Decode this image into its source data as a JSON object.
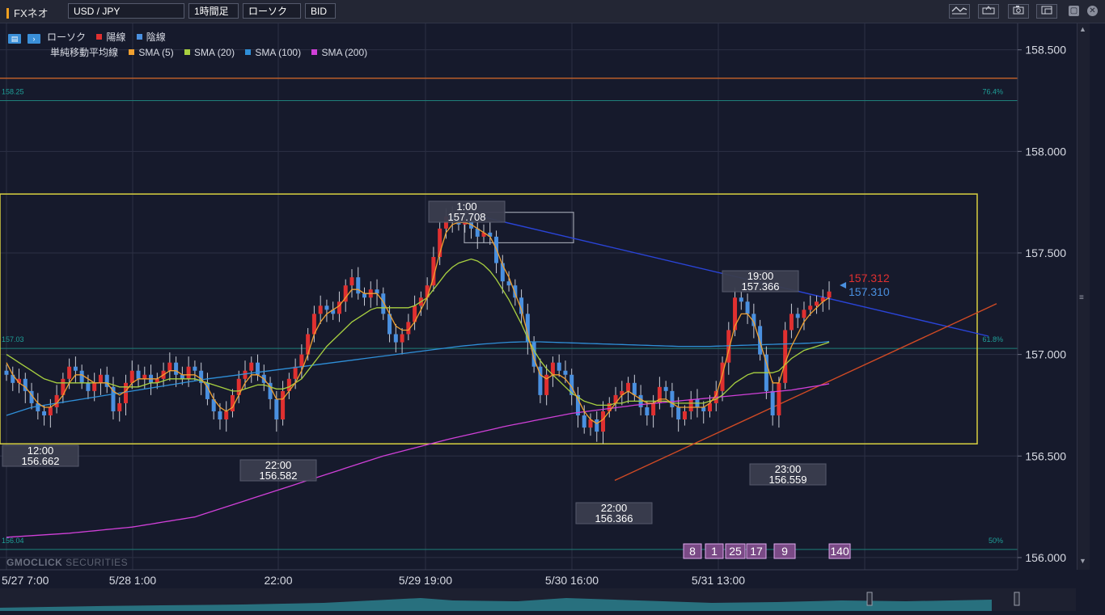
{
  "toolbar": {
    "app_title": "FXネオ",
    "pair": "USD / JPY",
    "timeframe": "1時間足",
    "chart_type": "ローソク",
    "price_type": "BID",
    "icons": [
      "indicator-icon",
      "export-icon",
      "camera-icon",
      "window-icon"
    ]
  },
  "legend": {
    "candle_label": "ローソク",
    "up_label": "陽線",
    "down_label": "陰線",
    "sma_group": "単純移動平均線",
    "sma": [
      {
        "name": "SMA (5)",
        "color": "#f0a030"
      },
      {
        "name": "SMA (20)",
        "color": "#a8d040"
      },
      {
        "name": "SMA (100)",
        "color": "#2f8fd8"
      },
      {
        "name": "SMA (200)",
        "color": "#d040d8"
      }
    ],
    "up_color": "#e03030",
    "down_color": "#4a90e0"
  },
  "brand": {
    "bold": "GMOCLICK",
    "rest": "SECURITIES"
  },
  "chart_data": {
    "type": "candlestick",
    "symbol": "USD/JPY",
    "ylim": [
      155.94,
      158.63
    ],
    "y_ticks": [
      "158.500",
      "158.000",
      "157.500",
      "157.000",
      "156.500",
      "156.000"
    ],
    "x_ticks": [
      "5/27 7:00",
      "5/28 1:00",
      "22:00",
      "5/29 19:00",
      "5/30 16:00",
      "5/31 13:00"
    ],
    "fib_levels": [
      {
        "price": 158.25,
        "label": "158.25",
        "pct": "76.4%"
      },
      {
        "price": 157.03,
        "label": "157.03",
        "pct": "61.8%"
      },
      {
        "price": 156.04,
        "label": "156.04",
        "pct": "50%"
      }
    ],
    "hline": 158.36,
    "current_ask": "157.312",
    "current_bid": "157.310",
    "annotations": [
      {
        "time": "12:00",
        "price": "156.662"
      },
      {
        "time": "22:00",
        "price": "156.582"
      },
      {
        "time": "1:00",
        "price": "157.708"
      },
      {
        "time": "22:00",
        "price": "156.366"
      },
      {
        "time": "19:00",
        "price": "157.366"
      },
      {
        "time": "23:00",
        "price": "156.559"
      }
    ],
    "event_badges": [
      "8",
      "1",
      "25",
      "17",
      "9",
      "140"
    ],
    "closes": [
      156.9,
      156.86,
      156.88,
      156.82,
      156.76,
      156.72,
      156.7,
      156.74,
      156.8,
      156.88,
      156.94,
      156.92,
      156.86,
      156.82,
      156.86,
      156.9,
      156.84,
      156.72,
      156.76,
      156.86,
      156.92,
      156.88,
      156.9,
      156.86,
      156.88,
      156.92,
      156.96,
      156.9,
      156.88,
      156.94,
      156.92,
      156.86,
      156.78,
      156.72,
      156.68,
      156.72,
      156.8,
      156.88,
      156.92,
      156.96,
      156.9,
      156.86,
      156.78,
      156.68,
      156.82,
      156.88,
      156.94,
      157.0,
      157.1,
      157.2,
      157.24,
      157.22,
      157.2,
      157.26,
      157.34,
      157.38,
      157.3,
      157.28,
      157.32,
      157.3,
      157.2,
      157.1,
      157.06,
      157.1,
      157.16,
      157.24,
      157.28,
      157.34,
      157.48,
      157.62,
      157.68,
      157.66,
      157.64,
      157.66,
      157.62,
      157.58,
      157.6,
      157.58,
      157.45,
      157.36,
      157.34,
      157.28,
      157.2,
      157.06,
      156.94,
      156.8,
      156.9,
      156.96,
      156.92,
      156.9,
      156.8,
      156.7,
      156.64,
      156.68,
      156.62,
      156.72,
      156.76,
      156.8,
      156.82,
      156.86,
      156.8,
      156.74,
      156.7,
      156.76,
      156.84,
      156.82,
      156.74,
      156.68,
      156.72,
      156.78,
      156.74,
      156.72,
      156.76,
      156.82,
      156.96,
      157.12,
      157.28,
      157.26,
      157.2,
      157.14,
      157.0,
      156.82,
      156.7,
      156.86,
      157.12,
      157.2,
      157.18,
      157.22,
      157.24,
      157.26,
      157.28,
      157.31
    ],
    "sma5": [
      156.96,
      156.9,
      156.86,
      156.84,
      156.8,
      156.76,
      156.74,
      156.74,
      156.76,
      156.8,
      156.86,
      156.9,
      156.9,
      156.88,
      156.86,
      156.86,
      156.86,
      156.82,
      156.8,
      156.82,
      156.86,
      156.88,
      156.88,
      156.88,
      156.88,
      156.9,
      156.92,
      156.92,
      156.9,
      156.9,
      156.9,
      156.88,
      156.84,
      156.78,
      156.74,
      156.72,
      156.74,
      156.8,
      156.86,
      156.9,
      156.9,
      156.88,
      156.84,
      156.78,
      156.78,
      156.82,
      156.86,
      156.92,
      157.0,
      157.1,
      157.16,
      157.2,
      157.22,
      157.24,
      157.28,
      157.32,
      157.32,
      157.3,
      157.3,
      157.3,
      157.26,
      157.2,
      157.14,
      157.12,
      157.12,
      157.16,
      157.22,
      157.28,
      157.38,
      157.5,
      157.6,
      157.64,
      157.65,
      157.65,
      157.64,
      157.62,
      157.6,
      157.58,
      157.52,
      157.44,
      157.38,
      157.3,
      157.22,
      157.1,
      156.98,
      156.9,
      156.88,
      156.9,
      156.9,
      156.88,
      156.84,
      156.78,
      156.72,
      156.68,
      156.66,
      156.68,
      156.72,
      156.76,
      156.8,
      156.82,
      156.8,
      156.78,
      156.76,
      156.76,
      156.78,
      156.78,
      156.76,
      156.74,
      156.74,
      156.74,
      156.74,
      156.74,
      156.76,
      156.8,
      156.9,
      157.02,
      157.14,
      157.2,
      157.2,
      157.16,
      157.06,
      156.96,
      156.86,
      156.86,
      156.96,
      157.04,
      157.1,
      157.16,
      157.2,
      157.23,
      157.26,
      157.28
    ],
    "sma20": [
      157.0,
      156.98,
      156.96,
      156.94,
      156.92,
      156.9,
      156.88,
      156.87,
      156.86,
      156.86,
      156.86,
      156.86,
      156.86,
      156.86,
      156.86,
      156.86,
      156.86,
      156.85,
      156.84,
      156.84,
      156.84,
      156.84,
      156.85,
      156.86,
      156.86,
      156.87,
      156.88,
      156.88,
      156.88,
      156.88,
      156.88,
      156.87,
      156.86,
      156.85,
      156.84,
      156.83,
      156.82,
      156.82,
      156.83,
      156.84,
      156.85,
      156.85,
      156.84,
      156.83,
      156.83,
      156.84,
      156.86,
      156.88,
      156.92,
      156.96,
      157.0,
      157.04,
      157.07,
      157.1,
      157.13,
      157.16,
      157.18,
      157.2,
      157.22,
      157.23,
      157.23,
      157.23,
      157.23,
      157.23,
      157.23,
      157.24,
      157.26,
      157.28,
      157.32,
      157.36,
      157.4,
      157.43,
      157.45,
      157.46,
      157.47,
      157.46,
      157.44,
      157.41,
      157.37,
      157.32,
      157.27,
      157.21,
      157.15,
      157.08,
      157.02,
      156.97,
      156.93,
      156.9,
      156.87,
      156.84,
      156.81,
      156.79,
      156.77,
      156.76,
      156.75,
      156.75,
      156.75,
      156.76,
      156.76,
      156.77,
      156.77,
      156.77,
      156.77,
      156.77,
      156.77,
      156.77,
      156.76,
      156.76,
      156.76,
      156.76,
      156.76,
      156.76,
      156.77,
      156.78,
      156.8,
      156.83,
      156.86,
      156.88,
      156.9,
      156.91,
      156.91,
      156.91,
      156.91,
      156.92,
      156.95,
      156.98,
      157.0,
      157.02,
      157.03,
      157.04,
      157.05,
      157.06
    ],
    "sma100": [
      156.7,
      156.71,
      156.72,
      156.73,
      156.74,
      156.745,
      156.75,
      156.755,
      156.76,
      156.765,
      156.77,
      156.775,
      156.78,
      156.785,
      156.79,
      156.795,
      156.8,
      156.805,
      156.81,
      156.815,
      156.82,
      156.825,
      156.83,
      156.835,
      156.84,
      156.845,
      156.85,
      156.855,
      156.86,
      156.865,
      156.87,
      156.875,
      156.88,
      156.884,
      156.888,
      156.892,
      156.896,
      156.9,
      156.904,
      156.908,
      156.912,
      156.916,
      156.92,
      156.924,
      156.928,
      156.932,
      156.936,
      156.94,
      156.944,
      156.948,
      156.952,
      156.956,
      156.96,
      156.964,
      156.968,
      156.972,
      156.976,
      156.98,
      156.984,
      156.988,
      156.992,
      156.996,
      157.0,
      157.004,
      157.008,
      157.012,
      157.016,
      157.02,
      157.024,
      157.028,
      157.032,
      157.036,
      157.04,
      157.043,
      157.046,
      157.049,
      157.052,
      157.054,
      157.056,
      157.058,
      157.06,
      157.061,
      157.062,
      157.062,
      157.062,
      157.062,
      157.061,
      157.06,
      157.059,
      157.058,
      157.057,
      157.056,
      157.055,
      157.054,
      157.053,
      157.052,
      157.051,
      157.05,
      157.049,
      157.048,
      157.047,
      157.046,
      157.045,
      157.044,
      157.043,
      157.042,
      157.041,
      157.04,
      157.04,
      157.04,
      157.04,
      157.04,
      157.04,
      157.041,
      157.042,
      157.043,
      157.044,
      157.045,
      157.046,
      157.047,
      157.048,
      157.049,
      157.05,
      157.051,
      157.052,
      157.053,
      157.054,
      157.055,
      157.056,
      157.058,
      157.06,
      157.064
    ],
    "sma200": [
      156.1,
      156.102,
      156.104,
      156.106,
      156.108,
      156.11,
      156.112,
      156.114,
      156.116,
      156.118,
      156.12,
      156.123,
      156.126,
      156.129,
      156.132,
      156.135,
      156.138,
      156.141,
      156.144,
      156.147,
      156.15,
      156.155,
      156.16,
      156.165,
      156.17,
      156.175,
      156.18,
      156.185,
      156.19,
      156.195,
      156.2,
      156.21,
      156.22,
      156.23,
      156.24,
      156.25,
      156.26,
      156.27,
      156.28,
      156.29,
      156.3,
      156.31,
      156.32,
      156.33,
      156.34,
      156.35,
      156.36,
      156.37,
      156.38,
      156.39,
      156.4,
      156.41,
      156.42,
      156.43,
      156.44,
      156.45,
      156.46,
      156.47,
      156.48,
      156.49,
      156.5,
      156.508,
      156.516,
      156.524,
      156.532,
      156.54,
      156.548,
      156.556,
      156.564,
      156.572,
      156.58,
      156.587,
      156.594,
      156.601,
      156.608,
      156.615,
      156.622,
      156.629,
      156.636,
      156.643,
      156.65,
      156.656,
      156.662,
      156.668,
      156.674,
      156.68,
      156.686,
      156.692,
      156.698,
      156.704,
      156.71,
      156.714,
      156.718,
      156.722,
      156.726,
      156.73,
      156.734,
      156.738,
      156.742,
      156.746,
      156.75,
      156.753,
      156.756,
      156.759,
      156.762,
      156.765,
      156.768,
      156.771,
      156.774,
      156.777,
      156.78,
      156.783,
      156.786,
      156.789,
      156.792,
      156.795,
      156.798,
      156.801,
      156.804,
      156.807,
      156.81,
      156.813,
      156.816,
      156.819,
      156.822,
      156.825,
      156.83,
      156.835,
      156.84,
      156.845,
      156.85,
      156.856
    ]
  }
}
